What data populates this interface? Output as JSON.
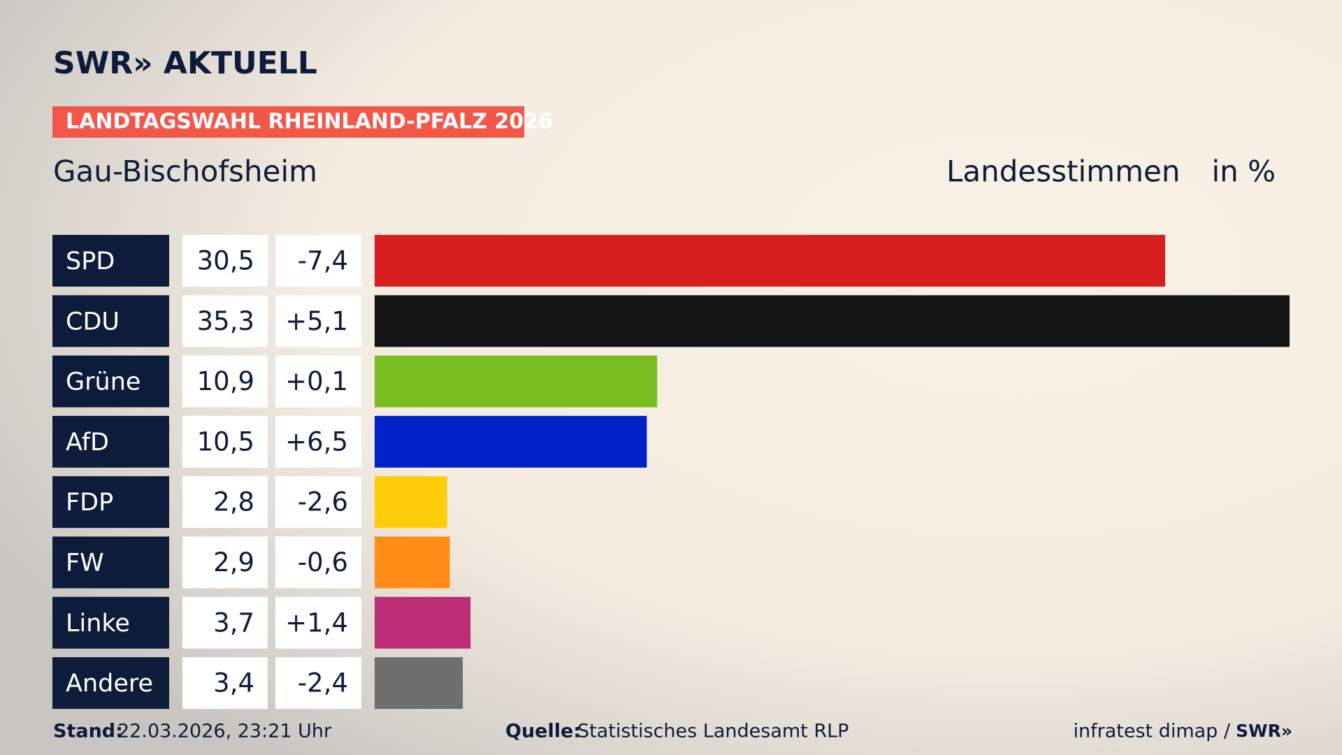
{
  "header": {
    "logo": "SWR» AKTUELL",
    "tag": "LANDTAGSWAHL RHEINLAND-PFALZ 2026",
    "place": "Gau-Bischofsheim",
    "vote_type": "Landesstimmen",
    "unit": "in %"
  },
  "chart_data": {
    "type": "bar",
    "categories": [
      "SPD",
      "CDU",
      "Grüne",
      "AfD",
      "FDP",
      "FW",
      "Linke",
      "Andere"
    ],
    "values": [
      30.5,
      35.3,
      10.9,
      10.5,
      2.8,
      2.9,
      3.7,
      3.4
    ],
    "value_labels": [
      "30,5",
      "35,3",
      "10,9",
      "10,5",
      "2,8",
      "2,9",
      "3,7",
      "3,4"
    ],
    "changes": [
      -7.4,
      5.1,
      0.1,
      6.5,
      -2.6,
      -0.6,
      1.4,
      -2.4
    ],
    "change_labels": [
      "-7,4",
      "+5,1",
      "+0,1",
      "+6,5",
      "-2,6",
      "-0,6",
      "+1,4",
      "-2,4"
    ],
    "colors": [
      "#d71f20",
      "#141414",
      "#7abd1f",
      "#0020c8",
      "#fecd0a",
      "#ff8c17",
      "#bb2d74",
      "#6e6e6e"
    ]
  },
  "footer": {
    "stand_label": "Stand:",
    "stand": "22.03.2026, 23:21 Uhr",
    "source_label": "Quelle:",
    "source": "Statistisches Landesamt RLP",
    "credit": "infratest dimap /",
    "credit_logo": "SWR»"
  }
}
